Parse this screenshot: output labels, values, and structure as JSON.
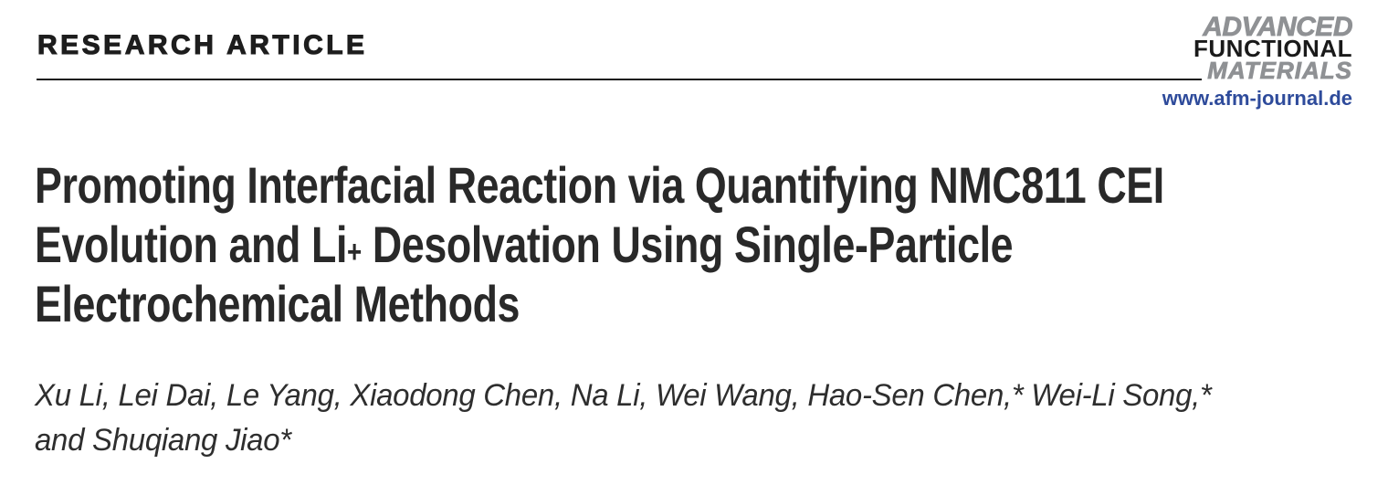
{
  "page": {
    "kicker": "RESEARCH ARTICLE",
    "journal": {
      "logo_line1": "ADVANCED",
      "logo_line2": "FUNCTIONAL",
      "logo_line3": "MATERIALS",
      "website": "www.afm-journal.de"
    },
    "title": {
      "line1": "Promoting Interfacial Reaction via Quantifying NMC811 CEI",
      "line2_pre": "Evolution and Li",
      "line2_sup": "+",
      "line2_post": " Desolvation Using Single-Particle",
      "line3": "Electrochemical Methods"
    },
    "authors": {
      "line1": "Xu Li, Lei Dai, Le Yang, Xiaodong Chen, Na Li, Wei Wang, Hao-Sen Chen,* Wei-Li Song,*",
      "line2": "and Shuqiang Jiao*"
    },
    "colors": {
      "body_text": "#262626",
      "kicker_black": "#1d1d1d",
      "logo_gray": "#8f9194",
      "logo_black": "#1a1a1a",
      "link_blue": "#2e4b9b"
    }
  }
}
